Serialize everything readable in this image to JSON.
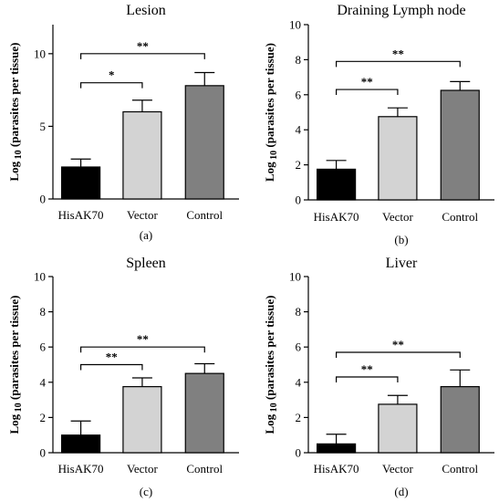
{
  "figure_label": "",
  "chart_data": [
    {
      "type": "bar",
      "title": "Lesion",
      "panel_label": "(a)",
      "ylabel_prefix": "Log",
      "ylabel_sub": "10",
      "ylabel_suffix": "(parasites per tissue)",
      "categories": [
        "HisAK70",
        "Vector",
        "Control"
      ],
      "values": [
        2.2,
        6.0,
        7.8
      ],
      "errors": [
        0.55,
        0.8,
        0.9
      ],
      "colors": [
        "#000000",
        "#d3d3d3",
        "#808080"
      ],
      "ylim": [
        0,
        12
      ],
      "yticks": [
        0,
        5,
        10
      ],
      "ytick_labels": [
        "0",
        "5",
        "10"
      ],
      "significance": [
        {
          "from": 0,
          "to": 1,
          "label": "*",
          "y": 8.0
        },
        {
          "from": 0,
          "to": 2,
          "label": "**",
          "y": 10.0
        }
      ]
    },
    {
      "type": "bar",
      "title": "Draining Lymph node",
      "panel_label": "(b)",
      "ylabel_prefix": "Log",
      "ylabel_sub": "10",
      "ylabel_suffix": "(parasites per tissue)",
      "categories": [
        "HisAK70",
        "Vector",
        "Control"
      ],
      "values": [
        1.75,
        4.75,
        6.25
      ],
      "errors": [
        0.5,
        0.5,
        0.5
      ],
      "colors": [
        "#000000",
        "#d3d3d3",
        "#808080"
      ],
      "ylim": [
        0,
        10
      ],
      "yticks": [
        0,
        2,
        4,
        6,
        8,
        10
      ],
      "ytick_labels": [
        "0",
        "2",
        "4",
        "6",
        "8",
        "10"
      ],
      "significance": [
        {
          "from": 0,
          "to": 1,
          "label": "**",
          "y": 6.3
        },
        {
          "from": 0,
          "to": 2,
          "label": "**",
          "y": 7.9
        }
      ]
    },
    {
      "type": "bar",
      "title": "Spleen",
      "panel_label": "(c)",
      "ylabel_prefix": "Log",
      "ylabel_sub": "10",
      "ylabel_suffix": "(parasites per tissue)",
      "categories": [
        "HisAK70",
        "Vector",
        "Control"
      ],
      "values": [
        1.0,
        3.75,
        4.5
      ],
      "errors": [
        0.8,
        0.5,
        0.55
      ],
      "colors": [
        "#000000",
        "#d3d3d3",
        "#808080"
      ],
      "ylim": [
        0,
        10
      ],
      "yticks": [
        0,
        2,
        4,
        6,
        8,
        10
      ],
      "ytick_labels": [
        "0",
        "2",
        "4",
        "6",
        "8",
        "10"
      ],
      "significance": [
        {
          "from": 0,
          "to": 1,
          "label": "**",
          "y": 5.0
        },
        {
          "from": 0,
          "to": 2,
          "label": "**",
          "y": 6.0
        }
      ]
    },
    {
      "type": "bar",
      "title": "Liver",
      "panel_label": "(d)",
      "ylabel_prefix": "Log",
      "ylabel_sub": "10",
      "ylabel_suffix": "(parasites per tissue)",
      "categories": [
        "HisAK70",
        "Vector",
        "Control"
      ],
      "values": [
        0.5,
        2.75,
        3.75
      ],
      "errors": [
        0.55,
        0.5,
        0.95
      ],
      "colors": [
        "#000000",
        "#d3d3d3",
        "#808080"
      ],
      "ylim": [
        0,
        10
      ],
      "yticks": [
        0,
        2,
        4,
        6,
        8,
        10
      ],
      "ytick_labels": [
        "0",
        "2",
        "4",
        "6",
        "8",
        "10"
      ],
      "significance": [
        {
          "from": 0,
          "to": 1,
          "label": "**",
          "y": 4.3
        },
        {
          "from": 0,
          "to": 2,
          "label": "**",
          "y": 5.7
        }
      ]
    }
  ]
}
